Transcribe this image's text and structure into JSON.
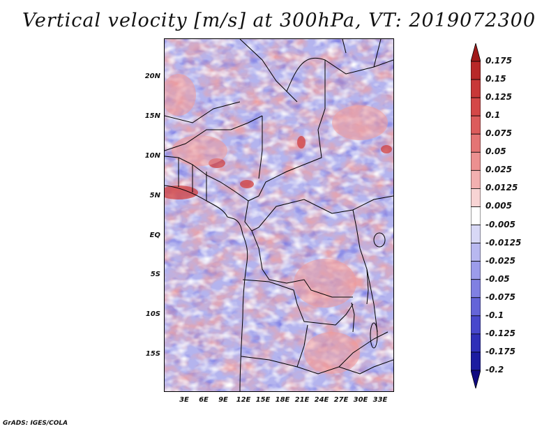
{
  "title": "Vertical velocity [m/s] at 300hPa, VT: 2019072300",
  "credit": "GrADS: IGES/COLA",
  "map": {
    "lon_range": [
      0,
      35
    ],
    "lat_range": [
      -20,
      25
    ],
    "lat_ticks": [
      "20N",
      "15N",
      "10N",
      "5N",
      "EQ",
      "5S",
      "10S",
      "15S"
    ],
    "lon_ticks": [
      "3E",
      "6E",
      "9E",
      "12E",
      "15E",
      "18E",
      "21E",
      "24E",
      "27E",
      "30E",
      "33E"
    ]
  },
  "colorbar": {
    "labels": [
      "0.175",
      "0.15",
      "0.125",
      "0.1",
      "0.075",
      "0.05",
      "0.025",
      "0.0125",
      "0.005",
      "-0.005",
      "-0.0125",
      "-0.025",
      "-0.05",
      "-0.075",
      "-0.1",
      "-0.125",
      "-0.175",
      "-0.2"
    ],
    "colors": [
      "#a01a1a",
      "#b82828",
      "#c83838",
      "#d44848",
      "#dc5c5c",
      "#e47474",
      "#ec9090",
      "#f2b0b0",
      "#f8d4d4",
      "#ffffff",
      "#d8d8f6",
      "#b8b8f0",
      "#9c9cea",
      "#8080e2",
      "#6464d8",
      "#4848cc",
      "#3030b8",
      "#1c1ca0",
      "#100a80"
    ]
  }
}
